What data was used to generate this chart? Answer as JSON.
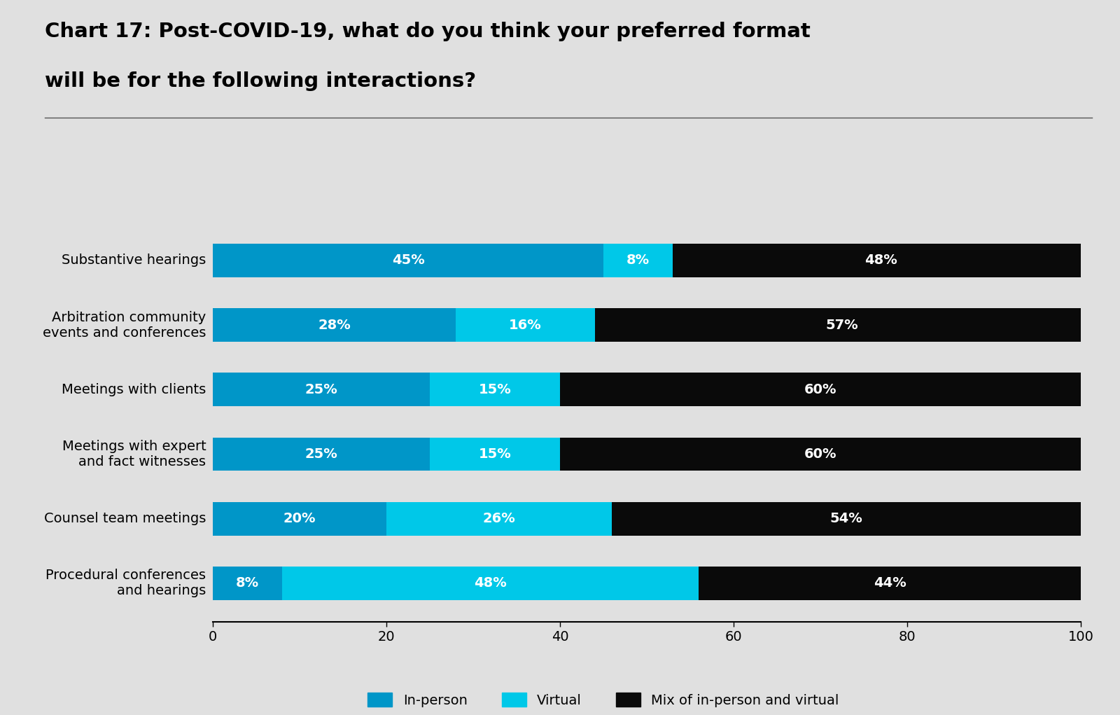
{
  "title_line1": "Chart 17: Post-COVID-19, what do you think your preferred format",
  "title_line2": "will be for the following interactions?",
  "categories": [
    "Substantive hearings",
    "Arbitration community\nevents and conferences",
    "Meetings with clients",
    "Meetings with expert\nand fact witnesses",
    "Counsel team meetings",
    "Procedural conferences\nand hearings"
  ],
  "in_person": [
    45,
    28,
    25,
    25,
    20,
    8
  ],
  "virtual": [
    8,
    16,
    15,
    15,
    26,
    48
  ],
  "mix": [
    48,
    57,
    60,
    60,
    54,
    44
  ],
  "color_inperson": "#0096c8",
  "color_virtual": "#00c8e8",
  "color_mix": "#0a0a0a",
  "background_color": "#e0e0e0",
  "bar_label_color": "#ffffff",
  "title_fontsize": 21,
  "label_fontsize": 14,
  "tick_fontsize": 14,
  "legend_fontsize": 14,
  "bar_height": 0.52,
  "xlim": [
    0,
    100
  ],
  "xticks": [
    0,
    20,
    40,
    60,
    80,
    100
  ]
}
